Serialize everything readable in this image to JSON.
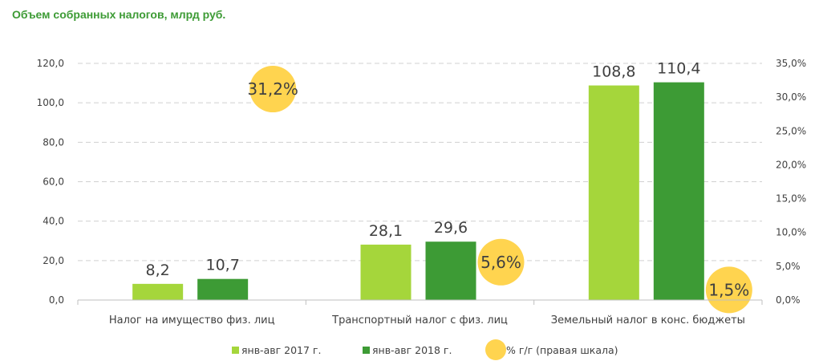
{
  "chart_data": {
    "type": "bar",
    "title": "Объем собранных налогов, млрд руб.",
    "categories": [
      "Налог на имущество физ. лиц",
      "Транспортный налог с физ. лиц",
      "Земельный налог в конс. бюджеты"
    ],
    "series": [
      {
        "name": "янв-авг 2017 г.",
        "values": [
          8.2,
          28.1,
          108.8
        ],
        "labels": [
          "8,2",
          "28,1",
          "108,8"
        ],
        "color": "#a5d63b"
      },
      {
        "name": "янв-авг 2018 г.",
        "values": [
          10.7,
          29.6,
          110.4
        ],
        "labels": [
          "10,7",
          "29,6",
          "110,4"
        ],
        "color": "#3d9b35"
      },
      {
        "name": "% г/г (правая шкала)",
        "values": [
          31.2,
          5.6,
          1.5
        ],
        "labels": [
          "31,2%",
          "5,6%",
          "1,5%"
        ],
        "color": "#ffd44f",
        "axis": "right",
        "marker": "circle"
      }
    ],
    "y_left": {
      "min": 0,
      "max": 120,
      "ticks": [
        0,
        20,
        40,
        60,
        80,
        100,
        120
      ],
      "tick_labels": [
        "0,0",
        "20,0",
        "40,0",
        "60,0",
        "80,0",
        "100,0",
        "120,0"
      ]
    },
    "y_right": {
      "min": 0,
      "max": 35,
      "ticks": [
        0,
        5,
        10,
        15,
        20,
        25,
        30,
        35
      ],
      "tick_labels": [
        "0,0%",
        "5,0%",
        "10,0%",
        "15,0%",
        "20,0%",
        "25,0%",
        "30,0%",
        "35,0%"
      ]
    },
    "grid": "horizontal-dashed",
    "legend_position": "bottom"
  }
}
